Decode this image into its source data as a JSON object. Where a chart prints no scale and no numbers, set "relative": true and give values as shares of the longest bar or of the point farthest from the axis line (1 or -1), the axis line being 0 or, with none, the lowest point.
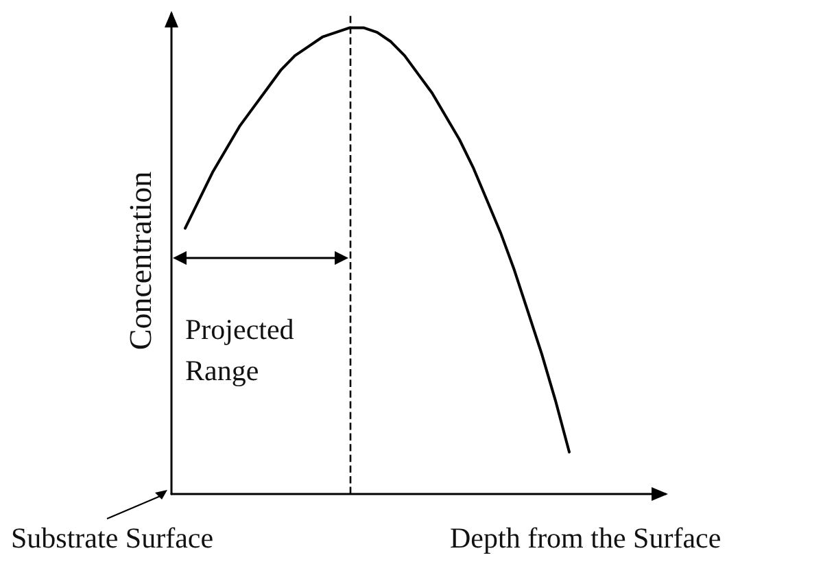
{
  "chart_data": {
    "type": "line",
    "relative": true,
    "xlabel": "Depth  from the Surface",
    "ylabel": "Concentration",
    "categories": [
      null,
      null,
      null,
      null,
      null,
      null,
      null,
      null,
      null,
      null,
      null,
      null,
      null,
      null,
      null,
      null,
      null,
      null,
      null,
      null,
      null,
      null,
      null,
      null,
      null,
      null,
      null,
      null,
      null,
      null,
      null,
      null,
      null,
      null,
      null,
      null,
      null
    ],
    "series": [
      {
        "color": "#000000",
        "values": [
          null,
          0.57,
          0.63,
          0.69,
          0.74,
          0.79,
          0.83,
          0.87,
          0.91,
          0.94,
          0.96,
          0.98,
          0.99,
          1,
          1,
          0.99,
          0.97,
          0.94,
          0.9,
          0.86,
          0.81,
          0.76,
          0.7,
          0.63,
          0.56,
          0.48,
          0.39,
          0.3,
          0.2,
          0.09,
          null,
          null,
          null,
          null,
          null,
          null,
          null
        ]
      }
    ],
    "annotations": [
      "Projected Range",
      "Substrate Surface"
    ],
    "marker": "none",
    "line_style": "solid",
    "grid": false
  }
}
